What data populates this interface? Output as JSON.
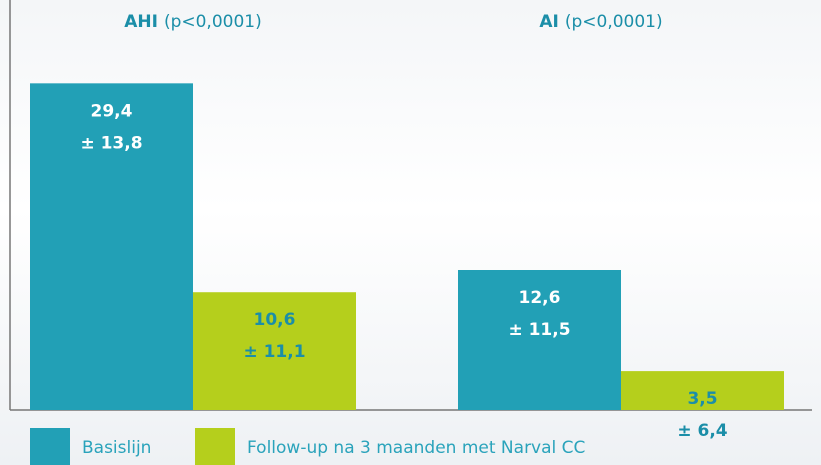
{
  "chart_data": {
    "type": "bar",
    "categories": [
      "AHI",
      "AI"
    ],
    "category_notes": [
      "(p<0,0001)",
      "(p<0,0001)"
    ],
    "series": [
      {
        "name": "Basislijn",
        "color": "#22a0b6",
        "values": [
          29.4,
          12.6
        ],
        "value_labels": [
          "29,4",
          "12,6"
        ],
        "errors": [
          13.8,
          11.5
        ],
        "error_labels": [
          "± 13,8",
          "± 11,5"
        ]
      },
      {
        "name": "Follow-up na 3 maanden met Narval CC",
        "color": "#b5cf1c",
        "values": [
          10.6,
          3.5
        ],
        "value_labels": [
          "10,6",
          "3,5"
        ],
        "errors": [
          11.1,
          6.4
        ],
        "error_labels": [
          "± 11,1",
          "± 6,4"
        ]
      }
    ],
    "ylim": [
      0,
      36
    ],
    "legend": "bottom"
  }
}
